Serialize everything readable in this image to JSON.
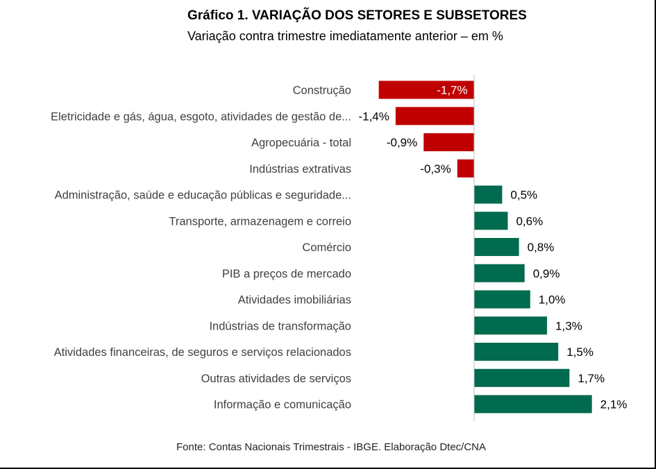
{
  "chart_data": {
    "type": "bar",
    "orientation": "horizontal",
    "title": "Gráfico 1. VARIAÇÃO DOS SETORES E SUBSETORES",
    "subtitle": "Variação contra trimestre imediatamente anterior – em %",
    "source": "Fonte: Contas Nacionais Trimestrais - IBGE. Elaboração Dtec/CNA",
    "categories": [
      "Construção",
      "Eletricidade e gás, água, esgoto, atividades de gestão de...",
      "Agropecuária - total",
      "Indústrias extrativas",
      "Administração, saúde e educação públicas e seguridade...",
      "Transporte, armazenagem e correio",
      "Comércio",
      "PIB a preços de mercado",
      "Atividades imobiliárias",
      "Indústrias de transformação",
      "Atividades financeiras, de seguros e serviços relacionados",
      "Outras atividades de serviços",
      "Informação e comunicação"
    ],
    "values": [
      -1.7,
      -1.4,
      -0.9,
      -0.3,
      0.5,
      0.6,
      0.8,
      0.9,
      1.0,
      1.3,
      1.5,
      1.7,
      2.1
    ],
    "value_labels": [
      "-1,7%",
      "-1,4%",
      "-0,9%",
      "-0,3%",
      "0,5%",
      "0,6%",
      "0,8%",
      "0,9%",
      "1,0%",
      "1,3%",
      "1,5%",
      "1,7%",
      "2,1%"
    ],
    "xlim": [
      -1.7,
      2.1
    ],
    "colors": {
      "negative": "#c00000",
      "positive": "#006b4e",
      "axis": "#bfbfbf"
    },
    "legend": "none",
    "grid": false
  }
}
